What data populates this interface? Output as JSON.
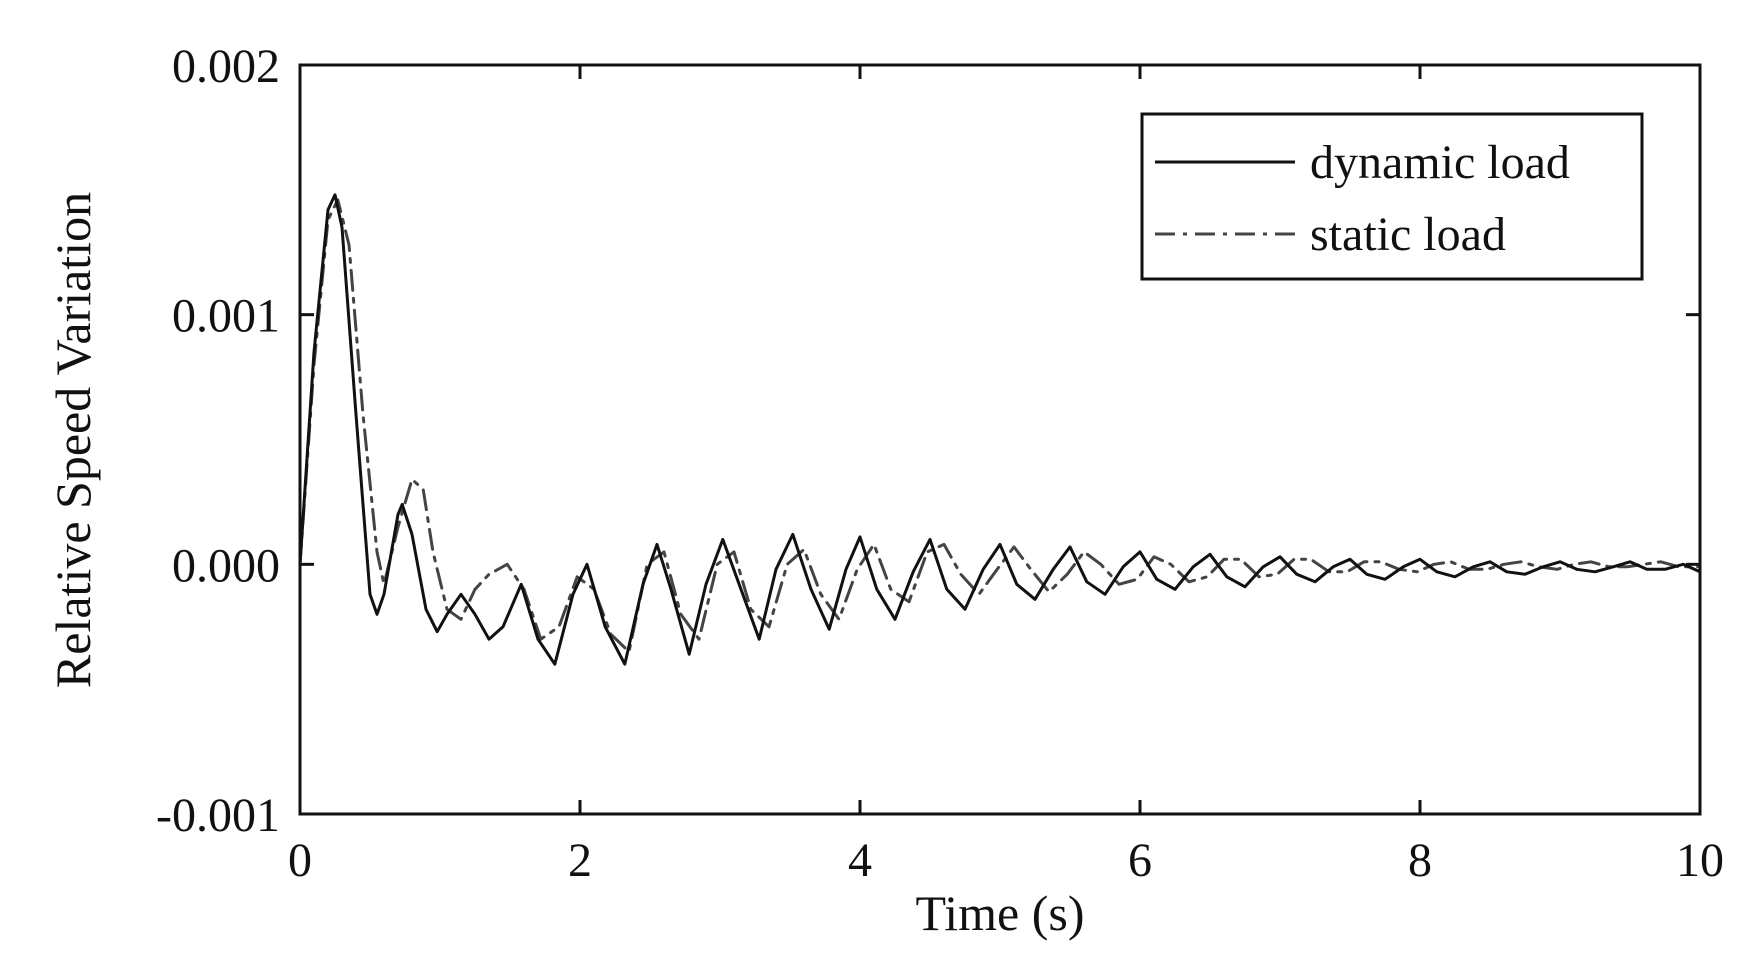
{
  "chart_data": {
    "type": "line",
    "title": "",
    "xlabel": "Time (s)",
    "ylabel": "Relative Speed Variation",
    "xlim": [
      0,
      10
    ],
    "ylim": [
      -0.001,
      0.002
    ],
    "x_ticks": [
      0,
      2,
      4,
      6,
      8,
      10
    ],
    "x_tick_labels": [
      "0",
      "2",
      "4",
      "6",
      "8",
      "10"
    ],
    "y_ticks": [
      -0.001,
      0.0,
      0.001,
      0.002
    ],
    "y_tick_labels": [
      "-0.001",
      "0.000",
      "0.001",
      "0.002"
    ],
    "grid": false,
    "legend_position": "top-right",
    "series": [
      {
        "name": "dynamic load",
        "style": "solid",
        "color": "#111111",
        "x": [
          0.0,
          0.1,
          0.2,
          0.25,
          0.3,
          0.4,
          0.5,
          0.55,
          0.6,
          0.7,
          0.73,
          0.8,
          0.9,
          0.98,
          1.05,
          1.15,
          1.25,
          1.35,
          1.45,
          1.58,
          1.7,
          1.82,
          1.95,
          2.05,
          2.18,
          2.32,
          2.45,
          2.55,
          2.65,
          2.78,
          2.9,
          3.02,
          3.15,
          3.28,
          3.4,
          3.52,
          3.65,
          3.78,
          3.9,
          4.0,
          4.12,
          4.25,
          4.38,
          4.5,
          4.62,
          4.75,
          4.88,
          5.0,
          5.12,
          5.25,
          5.38,
          5.5,
          5.62,
          5.75,
          5.88,
          6.0,
          6.12,
          6.25,
          6.38,
          6.5,
          6.62,
          6.75,
          6.88,
          7.0,
          7.12,
          7.25,
          7.38,
          7.5,
          7.62,
          7.75,
          7.88,
          8.0,
          8.12,
          8.25,
          8.38,
          8.5,
          8.62,
          8.75,
          8.88,
          9.0,
          9.12,
          9.25,
          9.38,
          9.5,
          9.62,
          9.75,
          9.88,
          10.0
        ],
        "y": [
          0.0,
          0.00085,
          0.00142,
          0.00148,
          0.00135,
          0.0006,
          -0.00012,
          -0.0002,
          -0.00012,
          0.0002,
          0.00024,
          0.00012,
          -0.00018,
          -0.00027,
          -0.0002,
          -0.00012,
          -0.0002,
          -0.0003,
          -0.00025,
          -8e-05,
          -0.0003,
          -0.0004,
          -0.00012,
          0.0,
          -0.00025,
          -0.0004,
          -8e-05,
          8e-05,
          -0.0001,
          -0.00036,
          -8e-05,
          0.0001,
          -0.0001,
          -0.0003,
          -2e-05,
          0.00012,
          -0.0001,
          -0.00026,
          -2e-05,
          0.00011,
          -0.0001,
          -0.00022,
          -3e-05,
          0.0001,
          -0.0001,
          -0.00018,
          -2e-05,
          8e-05,
          -8e-05,
          -0.00014,
          -2e-05,
          7e-05,
          -7e-05,
          -0.00012,
          -1e-05,
          5e-05,
          -6e-05,
          -0.0001,
          -1e-05,
          4e-05,
          -5e-05,
          -9e-05,
          -1e-05,
          3e-05,
          -4e-05,
          -7e-05,
          -1e-05,
          2e-05,
          -4e-05,
          -6e-05,
          -1e-05,
          2e-05,
          -3e-05,
          -5e-05,
          -1e-05,
          1e-05,
          -3e-05,
          -4e-05,
          -1e-05,
          1e-05,
          -2e-05,
          -3e-05,
          -1e-05,
          1e-05,
          -2e-05,
          -2e-05,
          0.0,
          -3e-05
        ]
      },
      {
        "name": "static load",
        "style": "dash-dot",
        "color": "#444444",
        "x": [
          0.0,
          0.1,
          0.2,
          0.27,
          0.35,
          0.45,
          0.55,
          0.6,
          0.7,
          0.8,
          0.88,
          0.95,
          1.05,
          1.15,
          1.25,
          1.35,
          1.48,
          1.6,
          1.72,
          1.85,
          1.98,
          2.1,
          2.22,
          2.35,
          2.48,
          2.6,
          2.72,
          2.85,
          2.98,
          3.1,
          3.22,
          3.35,
          3.48,
          3.6,
          3.72,
          3.85,
          3.98,
          4.1,
          4.22,
          4.35,
          4.48,
          4.6,
          4.72,
          4.85,
          4.98,
          5.1,
          5.22,
          5.35,
          5.48,
          5.6,
          5.72,
          5.85,
          5.98,
          6.1,
          6.22,
          6.35,
          6.48,
          6.6,
          6.72,
          6.85,
          6.98,
          7.1,
          7.22,
          7.35,
          7.48,
          7.6,
          7.72,
          7.85,
          7.98,
          8.1,
          8.22,
          8.35,
          8.48,
          8.6,
          8.72,
          8.85,
          8.98,
          9.1,
          9.22,
          9.35,
          9.48,
          9.6,
          9.72,
          9.85,
          10.0
        ],
        "y": [
          0.0,
          0.0008,
          0.00138,
          0.00146,
          0.00128,
          0.0006,
          5e-05,
          -8e-05,
          0.00015,
          0.00034,
          0.0003,
          5e-05,
          -0.00018,
          -0.00022,
          -0.0001,
          -4e-05,
          0.0,
          -0.0001,
          -0.0003,
          -0.00025,
          -5e-05,
          -0.0001,
          -0.00028,
          -0.00035,
          0.0,
          5e-05,
          -0.0002,
          -0.0003,
          0.0,
          5e-05,
          -0.00018,
          -0.00025,
          0.0,
          6e-05,
          -0.00012,
          -0.00022,
          -2e-05,
          8e-05,
          -0.0001,
          -0.00015,
          5e-05,
          8e-05,
          -4e-05,
          -0.00012,
          -2e-05,
          7e-05,
          -2e-05,
          -0.00011,
          -4e-05,
          5e-05,
          0.0,
          -8e-05,
          -6e-05,
          3e-05,
          0.0,
          -7e-05,
          -5e-05,
          2e-05,
          2e-05,
          -5e-05,
          -4e-05,
          2e-05,
          2e-05,
          -3e-05,
          -3e-05,
          1e-05,
          1e-05,
          -2e-05,
          -3e-05,
          0.0,
          1e-05,
          -2e-05,
          -2e-05,
          0.0,
          1e-05,
          -1e-05,
          -2e-05,
          0.0,
          1e-05,
          -1e-05,
          -1e-05,
          0.0,
          1e-05,
          -1e-05,
          -1e-05
        ]
      }
    ]
  }
}
